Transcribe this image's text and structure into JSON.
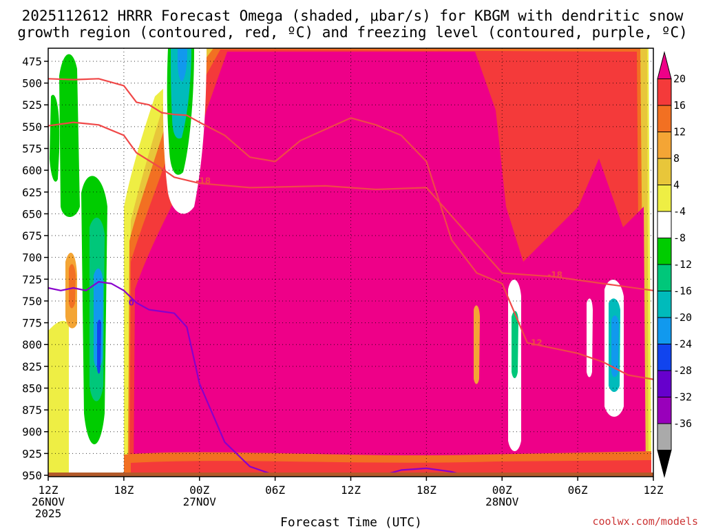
{
  "title": {
    "line1": "2025112612 HRRR Forecast Omega (shaded, μbar/s) for KBGM with dendritic snow",
    "line2": "growth region (contoured, red, ºC) and freezing level (contoured, purple, ºC)"
  },
  "credit": "coolwx.com/models",
  "chart_data": {
    "type": "heatmap",
    "title": "2025112612 HRRR Forecast Omega (shaded, μbar/s) for KBGM with dendritic snow growth region (contoured, red, ºC) and freezing level (contoured, purple, ºC)",
    "xlabel": "Forecast Time (UTC)",
    "ylabel": "",
    "x_range_hours": [
      0,
      48
    ],
    "y_range_mb": [
      950,
      460
    ],
    "y_ticks": [
      475,
      500,
      525,
      550,
      575,
      600,
      625,
      650,
      675,
      700,
      725,
      750,
      775,
      800,
      825,
      850,
      875,
      900,
      925,
      950
    ],
    "x_ticks": [
      {
        "hour": 0,
        "label": "12Z",
        "date": "26NOV",
        "year": "2025"
      },
      {
        "hour": 6,
        "label": "18Z"
      },
      {
        "hour": 12,
        "label": "00Z",
        "date": "27NOV"
      },
      {
        "hour": 18,
        "label": "06Z"
      },
      {
        "hour": 24,
        "label": "12Z"
      },
      {
        "hour": 30,
        "label": "18Z"
      },
      {
        "hour": 36,
        "label": "00Z",
        "date": "28NOV"
      },
      {
        "hour": 42,
        "label": "06Z"
      },
      {
        "hour": 48,
        "label": "12Z"
      }
    ],
    "grid": true,
    "colorbar": {
      "labels": [
        "20",
        "16",
        "12",
        "8",
        "4",
        "-4",
        "-8",
        "-12",
        "-16",
        "-20",
        "-24",
        "-28",
        "-32",
        "-36"
      ],
      "levels": [
        24,
        20,
        16,
        12,
        8,
        4,
        -4,
        -8,
        -12,
        -16,
        -20,
        -24,
        -28,
        -32,
        -36,
        -40
      ],
      "colors": [
        "#ee0088",
        "#f43a3a",
        "#f27022",
        "#f4a535",
        "#e8c63a",
        "#eeee44",
        "#ffffff",
        "#00cc00",
        "#00c77a",
        "#00bbbb",
        "#1199ee",
        "#1144ee",
        "#6600cc",
        "#9900bb",
        "#aaaaaa",
        "#000000"
      ]
    },
    "omega_regions": [
      {
        "value": 24,
        "color": "#ee0088",
        "hours": [
          6.5,
          47
        ],
        "p_range": [
          460,
          950
        ],
        "note": "strong upward motion dominating 27 Nov"
      },
      {
        "value": 4,
        "color": "#ffffff",
        "hours": [
          1,
          5.5
        ],
        "p_range": [
          520,
          920
        ],
        "note": "weak/neutral"
      },
      {
        "value": -8,
        "color": "#00cc00",
        "hours": [
          1,
          2.2
        ],
        "p_range": [
          470,
          700
        ]
      },
      {
        "value": -16,
        "color": "#1199ee",
        "hours": [
          3.5,
          4.4
        ],
        "p_range": [
          680,
          800
        ]
      },
      {
        "value": -12,
        "color": "#00bbbb",
        "hours": [
          10.5,
          11.3
        ],
        "p_range": [
          460,
          560
        ]
      },
      {
        "value": -8,
        "color": "#00c77a",
        "hours": [
          36.6,
          36.9
        ],
        "p_range": [
          740,
          800
        ]
      },
      {
        "value": -16,
        "color": "#1199ee",
        "hours": [
          44.6,
          45.3
        ],
        "p_range": [
          730,
          810
        ]
      }
    ],
    "series": [
      {
        "name": "-18",
        "color": "#f04848",
        "kind": "dendritic",
        "x": [
          0,
          2,
          4,
          6,
          7,
          9,
          10,
          12,
          16,
          22,
          26,
          30,
          36,
          40,
          44,
          48
        ],
        "y": [
          549,
          545,
          548,
          560,
          580,
          598,
          608,
          615,
          620,
          618,
          622,
          620,
          718,
          722,
          730,
          738
        ]
      },
      {
        "name": "-12",
        "color": "#f04848",
        "kind": "dendritic",
        "x": [
          0,
          2,
          4,
          6,
          7,
          8,
          9,
          10,
          11,
          12,
          14,
          16,
          18,
          20,
          24,
          26,
          28,
          30,
          32,
          34,
          36,
          38,
          42,
          44,
          46,
          48
        ],
        "y": [
          495,
          496,
          495,
          503,
          522,
          525,
          534,
          536,
          537,
          545,
          560,
          585,
          590,
          566,
          540,
          548,
          560,
          590,
          680,
          718,
          730,
          798,
          810,
          820,
          835,
          840
        ]
      },
      {
        "name": "0",
        "color": "#8800cc",
        "kind": "freezing-level",
        "x": [
          0,
          1,
          2,
          3,
          4,
          5,
          6,
          7,
          8,
          9,
          10,
          11,
          12,
          14,
          16,
          18
        ],
        "y": [
          735,
          738,
          735,
          738,
          728,
          730,
          738,
          752,
          760,
          762,
          764,
          780,
          845,
          912,
          940,
          950
        ]
      },
      {
        "name": "0",
        "color": "#8800cc",
        "kind": "freezing-level",
        "x": [
          25.5,
          27,
          28,
          30,
          32,
          33
        ],
        "y": [
          950,
          948,
          944,
          942,
          946,
          950
        ]
      }
    ]
  }
}
